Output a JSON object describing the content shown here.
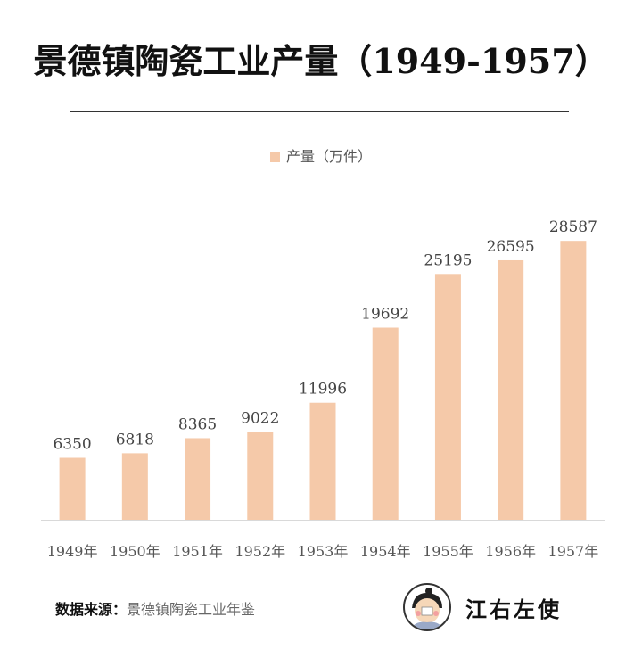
{
  "chart_data": {
    "type": "bar",
    "title": "景德镇陶瓷工业产量（1949-1957）",
    "categories": [
      "1949年",
      "1950年",
      "1951年",
      "1952年",
      "1953年",
      "1954年",
      "1955年",
      "1956年",
      "1957年"
    ],
    "series": [
      {
        "name": "产量（万件）",
        "values": [
          6350,
          6818,
          8365,
          9022,
          11996,
          19692,
          25195,
          26595,
          28587
        ]
      }
    ],
    "xlabel": "",
    "ylabel": "",
    "ylim": [
      0,
      35000
    ],
    "grid": false,
    "legend": "top-center",
    "color": "#F5C9A9"
  },
  "footer": {
    "source_label": "数据来源：",
    "source_value": "景德镇陶瓷工业年鉴",
    "brand": "江右左使"
  }
}
